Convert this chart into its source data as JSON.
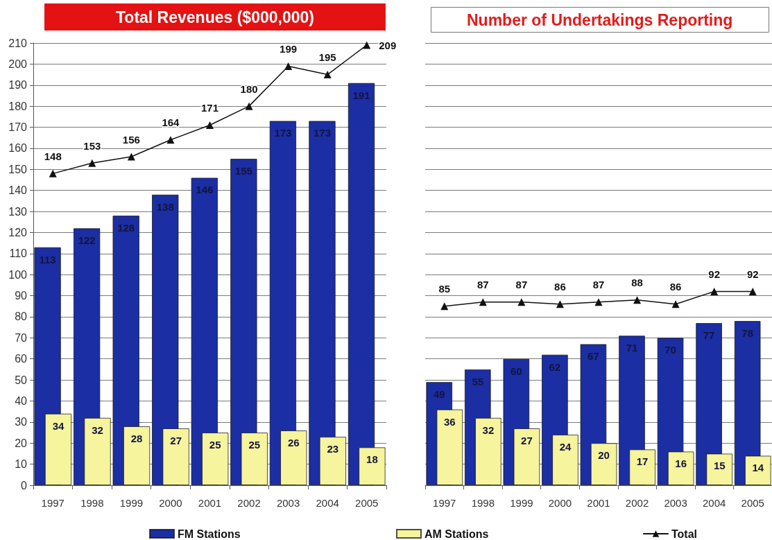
{
  "chart_data": [
    {
      "type": "bar",
      "title": "Total Revenues ($000,000)",
      "categories": [
        "1997",
        "1998",
        "1999",
        "2000",
        "2001",
        "2002",
        "2003",
        "2004",
        "2005"
      ],
      "series": [
        {
          "name": "FM Stations",
          "color": "#1b2ea3",
          "values": [
            113,
            122,
            128,
            138,
            146,
            155,
            173,
            173,
            191
          ]
        },
        {
          "name": "AM Stations",
          "color": "#f6f49c",
          "values": [
            34,
            32,
            28,
            27,
            25,
            25,
            26,
            23,
            18
          ]
        },
        {
          "name": "Total",
          "type": "line",
          "color": "#111111",
          "values": [
            148,
            153,
            156,
            164,
            171,
            180,
            199,
            195,
            209
          ]
        }
      ],
      "ylim": [
        0,
        210
      ],
      "yticks": [
        0,
        10,
        20,
        30,
        40,
        50,
        60,
        70,
        80,
        90,
        100,
        110,
        120,
        130,
        140,
        150,
        160,
        170,
        180,
        190,
        200,
        210
      ],
      "grid": "y",
      "legend": "bottom",
      "marker": "triangle",
      "data_labels": true
    },
    {
      "type": "bar",
      "title": "Number of Undertakings Reporting",
      "categories": [
        "1997",
        "1998",
        "1999",
        "2000",
        "2001",
        "2002",
        "2003",
        "2004",
        "2005"
      ],
      "series": [
        {
          "color": "#1b2ea3",
          "values": [
            49,
            55,
            60,
            62,
            67,
            71,
            70,
            77,
            78
          ]
        },
        {
          "color": "#f6f49c",
          "values": [
            36,
            32,
            27,
            24,
            20,
            17,
            16,
            15,
            14
          ]
        },
        {
          "type": "line",
          "color": "#111111",
          "values": [
            85,
            87,
            87,
            86,
            87,
            88,
            86,
            92,
            92
          ]
        }
      ],
      "ylim": [
        0,
        210
      ],
      "yticks": [
        0,
        10,
        20,
        30,
        40,
        50,
        60,
        70,
        80,
        90,
        100,
        110,
        120,
        130,
        140,
        150,
        160,
        170,
        180,
        190,
        200,
        210
      ],
      "grid": "y",
      "tick_labels": "x",
      "marker": "triangle",
      "data_labels": true
    }
  ]
}
